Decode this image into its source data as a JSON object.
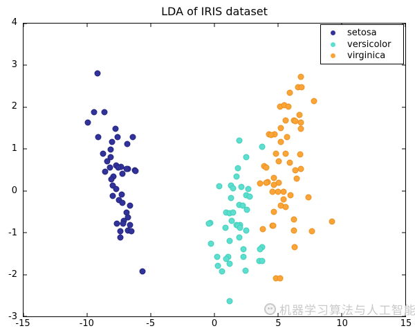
{
  "chart_data": {
    "type": "scatter",
    "title": "LDA of IRIS dataset",
    "xlabel": "",
    "ylabel": "",
    "xlim": [
      -15,
      15
    ],
    "ylim": [
      -3,
      4
    ],
    "grid": false,
    "legend_position": "upper right",
    "x_ticks": [
      -15,
      -10,
      -5,
      0,
      5,
      10,
      15
    ],
    "y_ticks": [
      -3,
      -2,
      -1,
      0,
      1,
      2,
      3,
      4
    ],
    "x_tick_labels": [
      "-15",
      "-10",
      "-5",
      "0",
      "5",
      "10",
      "15"
    ],
    "y_tick_labels": [
      "-3",
      "-2",
      "-1",
      "0",
      "1",
      "2",
      "3",
      "4"
    ],
    "series": [
      {
        "name": "setosa",
        "color": "#32329b",
        "edge_color": "#23237d",
        "points": [
          [
            -9.17,
            2.81
          ],
          [
            -9.44,
            1.89
          ],
          [
            -8.63,
            1.89
          ],
          [
            -9.93,
            1.63
          ],
          [
            -7.77,
            1.48
          ],
          [
            -9.12,
            1.28
          ],
          [
            -7.61,
            1.28
          ],
          [
            -6.42,
            1.28
          ],
          [
            -8.04,
            1.17
          ],
          [
            -6.85,
            1.12
          ],
          [
            -8.15,
            0.99
          ],
          [
            -8.74,
            0.89
          ],
          [
            -8.15,
            0.8
          ],
          [
            -8.42,
            0.71
          ],
          [
            -7.72,
            0.61
          ],
          [
            -7.34,
            0.57
          ],
          [
            -8.2,
            0.56
          ],
          [
            -7.55,
            0.56
          ],
          [
            -6.8,
            0.52
          ],
          [
            -6.91,
            0.52
          ],
          [
            -6.26,
            0.49
          ],
          [
            -6.2,
            0.47
          ],
          [
            -8.58,
            0.46
          ],
          [
            -7.23,
            0.41
          ],
          [
            -7.93,
            0.34
          ],
          [
            -8.09,
            0.28
          ],
          [
            -7.98,
            0.13
          ],
          [
            -7.72,
            0.05
          ],
          [
            -7.28,
            -0.08
          ],
          [
            -7.98,
            -0.12
          ],
          [
            -7.5,
            -0.22
          ],
          [
            -7.23,
            -0.28
          ],
          [
            -6.64,
            -0.35
          ],
          [
            -6.91,
            -0.51
          ],
          [
            -6.8,
            -0.63
          ],
          [
            -7.12,
            -0.71
          ],
          [
            -7.66,
            -0.79
          ],
          [
            -7.17,
            -0.78
          ],
          [
            -6.64,
            -0.81
          ],
          [
            -7.39,
            -0.97
          ],
          [
            -6.8,
            -0.94
          ],
          [
            -6.53,
            -0.96
          ],
          [
            -7.39,
            -1.11
          ],
          [
            -5.66,
            -1.92
          ]
        ]
      },
      {
        "name": "versicolor",
        "color": "#5cdfce",
        "edge_color": "#43cdbb",
        "points": [
          [
            1.95,
            1.2
          ],
          [
            3.73,
            1.05
          ],
          [
            2.49,
            0.8
          ],
          [
            1.84,
            0.54
          ],
          [
            1.73,
            0.34
          ],
          [
            0.38,
            0.11
          ],
          [
            1.3,
            0.13
          ],
          [
            1.46,
            0.06
          ],
          [
            2.11,
            0.1
          ],
          [
            2.65,
            0.05
          ],
          [
            1.3,
            -0.17
          ],
          [
            2.49,
            -0.1
          ],
          [
            2.76,
            -0.13
          ],
          [
            1.95,
            -0.33
          ],
          [
            2.22,
            -0.35
          ],
          [
            2.54,
            -0.45
          ],
          [
            0.92,
            -0.51
          ],
          [
            1.19,
            -0.53
          ],
          [
            1.46,
            -0.51
          ],
          [
            1.35,
            -0.71
          ],
          [
            -0.32,
            -0.76
          ],
          [
            -0.43,
            -0.79
          ],
          [
            1.73,
            -0.81
          ],
          [
            2.0,
            -0.81
          ],
          [
            1.84,
            -0.84
          ],
          [
            0.87,
            -0.88
          ],
          [
            2.0,
            -0.89
          ],
          [
            2.49,
            -0.94
          ],
          [
            1.95,
            -1.12
          ],
          [
            1.19,
            -1.2
          ],
          [
            -0.27,
            -1.27
          ],
          [
            3.73,
            -1.35
          ],
          [
            3.57,
            -1.39
          ],
          [
            2.27,
            -1.4
          ],
          [
            0.22,
            -1.57
          ],
          [
            1.08,
            -1.58
          ],
          [
            2.27,
            -1.58
          ],
          [
            0.92,
            -1.62
          ],
          [
            3.51,
            -1.68
          ],
          [
            3.73,
            -1.67
          ],
          [
            1.19,
            -1.75
          ],
          [
            0.27,
            -1.8
          ],
          [
            0.6,
            -1.93
          ],
          [
            2.43,
            -1.91
          ],
          [
            1.19,
            -2.64
          ]
        ]
      },
      {
        "name": "virginica",
        "color": "#fba538",
        "edge_color": "#ea8f1e",
        "points": [
          [
            6.8,
            2.72
          ],
          [
            6.59,
            2.48
          ],
          [
            6.86,
            2.47
          ],
          [
            5.94,
            2.35
          ],
          [
            7.83,
            2.14
          ],
          [
            5.18,
            2.02
          ],
          [
            5.51,
            2.04
          ],
          [
            5.83,
            2.02
          ],
          [
            6.69,
            1.81
          ],
          [
            6.26,
            1.69
          ],
          [
            6.37,
            1.66
          ],
          [
            5.61,
            1.68
          ],
          [
            6.8,
            1.63
          ],
          [
            5.24,
            1.5
          ],
          [
            6.8,
            1.48
          ],
          [
            4.27,
            1.36
          ],
          [
            4.75,
            1.36
          ],
          [
            4.43,
            1.33
          ],
          [
            5.72,
            1.29
          ],
          [
            5.24,
            1.17
          ],
          [
            4.86,
            0.89
          ],
          [
            5.61,
            0.89
          ],
          [
            6.75,
            0.87
          ],
          [
            5.08,
            0.71
          ],
          [
            5.94,
            0.67
          ],
          [
            6.37,
            0.49
          ],
          [
            6.8,
            0.52
          ],
          [
            3.89,
            0.59
          ],
          [
            4.1,
            0.56
          ],
          [
            4.7,
            0.31
          ],
          [
            6.48,
            0.29
          ],
          [
            4.16,
            0.21
          ],
          [
            5.08,
            0.19
          ],
          [
            4.1,
            0.19
          ],
          [
            3.57,
            0.18
          ],
          [
            4.7,
            0.14
          ],
          [
            4.54,
            -0.02
          ],
          [
            5.02,
            -0.02
          ],
          [
            5.45,
            -0.02
          ],
          [
            5.99,
            -0.1
          ],
          [
            5.45,
            -0.2
          ],
          [
            7.4,
            -0.15
          ],
          [
            5.24,
            -0.35
          ],
          [
            5.61,
            -0.38
          ],
          [
            4.7,
            -0.5
          ],
          [
            6.26,
            -0.68
          ],
          [
            9.23,
            -0.74
          ],
          [
            3.83,
            -0.92
          ],
          [
            4.54,
            -0.83
          ],
          [
            4.64,
            -0.84
          ],
          [
            6.26,
            -0.94
          ],
          [
            7.66,
            -0.96
          ],
          [
            6.32,
            -1.34
          ],
          [
            4.81,
            -2.09
          ],
          [
            5.18,
            -2.09
          ]
        ]
      }
    ]
  },
  "legend": {
    "entries": [
      "setosa",
      "versicolor",
      "virginica"
    ]
  },
  "watermark": {
    "text": "机器学习算法与人工智能",
    "icon": "logo-circle",
    "color": "#c9c9c9"
  }
}
